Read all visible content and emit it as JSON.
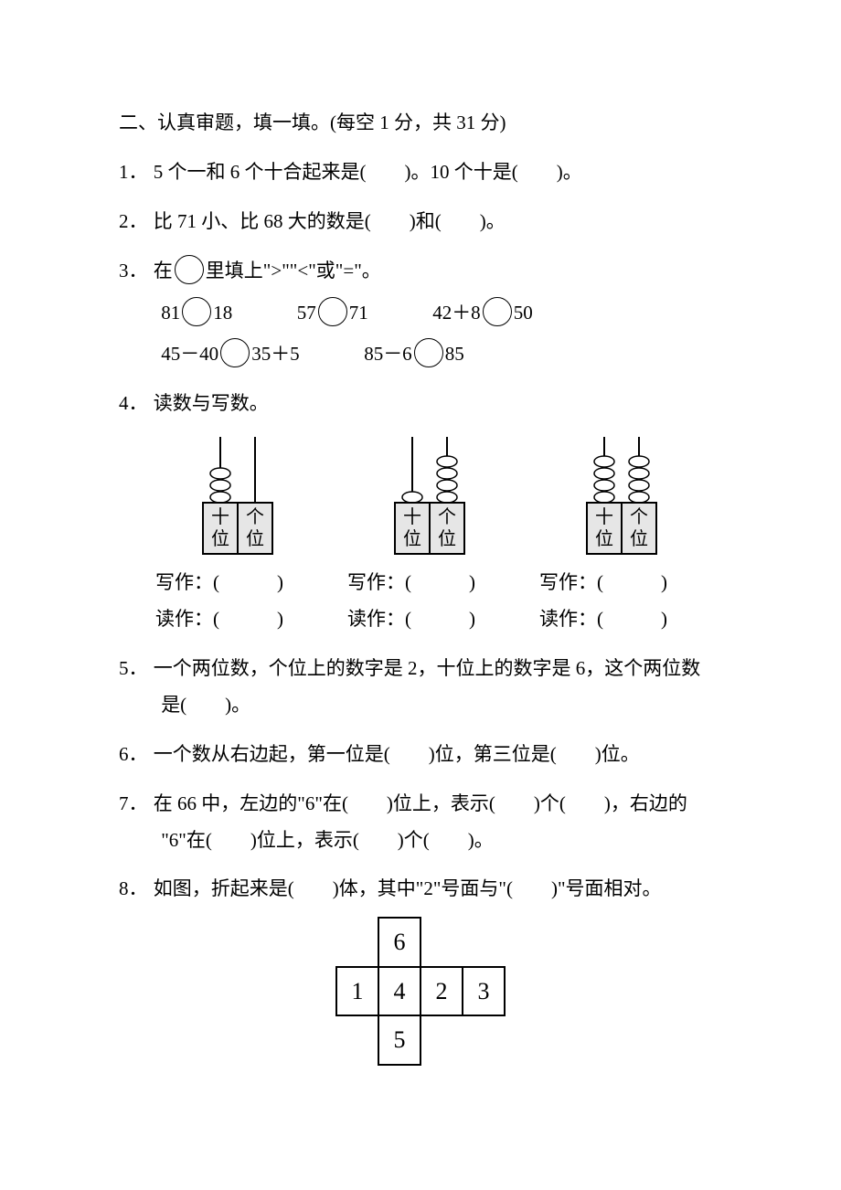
{
  "section_title": "二、认真审题，填一填。(每空 1 分，共 31 分)",
  "q1": {
    "num": "1．",
    "text": "5 个一和 6 个十合起来是(　　)。10 个十是(　　)。"
  },
  "q2": {
    "num": "2．",
    "text": "比 71 小、比 68 大的数是(　　)和(　　)。"
  },
  "q3": {
    "num": "3．",
    "lead_a": "在",
    "lead_b": "里填上\">\"\"<\"或\"=\"。",
    "r1a_l": "81",
    "r1a_r": "18",
    "r1b_l": "57",
    "r1b_r": "71",
    "r1c_l": "42＋8",
    "r1c_r": "50",
    "r2a_l": "45－40",
    "r2a_r": "35＋5",
    "r2b_l": "85－6",
    "r2b_r": "85"
  },
  "q4": {
    "num": "4．",
    "title": "读数与写数。",
    "abaci": [
      {
        "tens_beads": 3,
        "ones_beads": 0
      },
      {
        "tens_beads": 1,
        "ones_beads": 4
      },
      {
        "tens_beads": 4,
        "ones_beads": 4
      }
    ],
    "write_label": "写作：(　　　)",
    "read_label": "读作：(　　　)",
    "label_ten": "十",
    "label_one": "个",
    "label_wei": "位",
    "colors": {
      "stroke": "#000000",
      "box_fill": "#e6e6e6",
      "bead_fill": "#ffffff"
    }
  },
  "q5": {
    "num": "5．",
    "l1": "一个两位数，个位上的数字是 2，十位上的数字是 6，这个两位数",
    "l2": "是(　　)。"
  },
  "q6": {
    "num": "6．",
    "text": "一个数从右边起，第一位是(　　)位，第三位是(　　)位。"
  },
  "q7": {
    "num": "7．",
    "l1": "在 66 中，左边的\"6\"在(　　)位上，表示(　　)个(　　)，右边的",
    "l2": "\"6\"在(　　)位上，表示(　　)个(　　)。"
  },
  "q8": {
    "num": "8．",
    "text": "如图，折起来是(　　)体，其中\"2\"号面与\"(　　)\"号面相对。",
    "net": {
      "layout": [
        [
          null,
          "6",
          null,
          null
        ],
        [
          "1",
          "4",
          "2",
          "3"
        ],
        [
          null,
          "5",
          null,
          null
        ]
      ]
    }
  }
}
